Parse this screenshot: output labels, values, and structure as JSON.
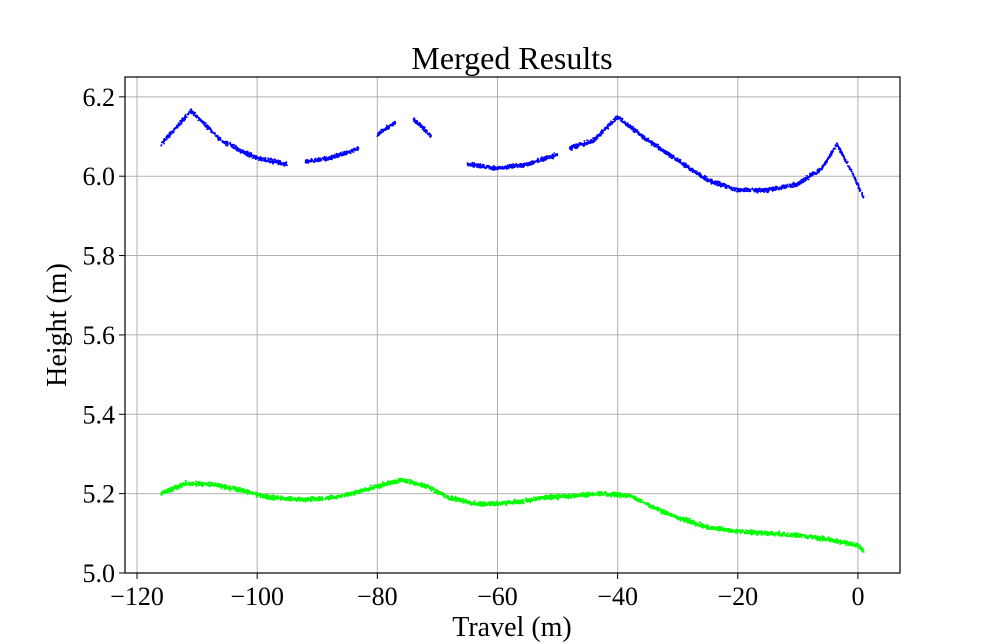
{
  "chart_data": {
    "type": "scatter",
    "title": "Merged Results",
    "xlabel": "Travel (m)",
    "ylabel": "Height (m)",
    "xlim": [
      -122,
      7
    ],
    "ylim": [
      5.0,
      6.25
    ],
    "grid": true,
    "x_ticks": [
      -120,
      -100,
      -80,
      -60,
      -40,
      -20,
      0
    ],
    "x_tick_labels": [
      "−120",
      "−100",
      "−80",
      "−60",
      "−40",
      "−20",
      "0"
    ],
    "y_ticks": [
      5.0,
      5.2,
      5.4,
      5.6,
      5.8,
      6.0,
      6.2
    ],
    "y_tick_labels": [
      "5.0",
      "5.2",
      "5.4",
      "5.6",
      "5.8",
      "6.0",
      "6.2"
    ],
    "series": [
      {
        "color": "#0000ff",
        "segments": [
          [
            [
              -116,
              6.08
            ],
            [
              -111,
              6.165
            ],
            [
              -106,
              6.09
            ],
            [
              -100,
              6.045
            ],
            [
              -95,
              6.03
            ]
          ],
          [
            [
              -92,
              6.035
            ],
            [
              -88,
              6.045
            ],
            [
              -83,
              6.07
            ]
          ],
          [
            [
              -80,
              6.105
            ],
            [
              -77,
              6.135
            ]
          ],
          [
            [
              -74,
              6.145
            ],
            [
              -71,
              6.1
            ]
          ],
          [
            [
              -65,
              6.03
            ],
            [
              -60,
              6.02
            ],
            [
              -55,
              6.03
            ],
            [
              -50,
              6.055
            ]
          ],
          [
            [
              -48,
              6.07
            ],
            [
              -44,
              6.09
            ],
            [
              -40,
              6.15
            ],
            [
              -35,
              6.09
            ],
            [
              -30,
              6.04
            ],
            [
              -25,
              5.99
            ],
            [
              -20,
              5.965
            ],
            [
              -15,
              5.965
            ],
            [
              -10,
              5.98
            ],
            [
              -6,
              6.02
            ],
            [
              -3.5,
              6.08
            ],
            [
              -1,
              6.01
            ],
            [
              1,
              5.945
            ]
          ]
        ]
      },
      {
        "color": "#00ff00",
        "segments": [
          [
            [
              -116,
              5.2
            ],
            [
              -112,
              5.225
            ],
            [
              -108,
              5.225
            ],
            [
              -103,
              5.21
            ],
            [
              -98,
              5.19
            ],
            [
              -92,
              5.185
            ],
            [
              -87,
              5.19
            ],
            [
              -82,
              5.21
            ],
            [
              -76,
              5.235
            ],
            [
              -72,
              5.22
            ],
            [
              -68,
              5.19
            ],
            [
              -64,
              5.175
            ],
            [
              -60,
              5.175
            ],
            [
              -56,
              5.18
            ],
            [
              -52,
              5.19
            ],
            [
              -47,
              5.195
            ],
            [
              -43,
              5.2
            ],
            [
              -38,
              5.195
            ],
            [
              -34,
              5.165
            ],
            [
              -30,
              5.14
            ],
            [
              -25,
              5.115
            ],
            [
              -20,
              5.105
            ],
            [
              -15,
              5.1
            ],
            [
              -10,
              5.095
            ],
            [
              -5,
              5.085
            ],
            [
              0,
              5.07
            ],
            [
              1,
              5.055
            ]
          ]
        ]
      }
    ]
  }
}
